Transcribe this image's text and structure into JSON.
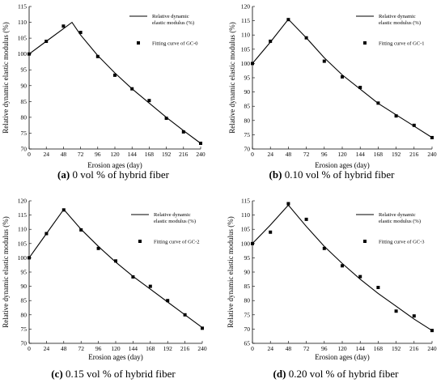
{
  "chart_data": [
    {
      "type": "line",
      "panel_label": "(a)",
      "caption": "0 vol % of hybrid fiber",
      "xlabel": "Erosion ages (day)",
      "ylabel": "Relative dynamic elastic modulus (%)",
      "xlim": [
        0,
        240
      ],
      "ylim": [
        70,
        115
      ],
      "xticks": [
        0,
        24,
        48,
        72,
        96,
        120,
        144,
        168,
        192,
        216,
        240
      ],
      "yticks": [
        70,
        75,
        80,
        85,
        90,
        95,
        100,
        105,
        110,
        115
      ],
      "legend": {
        "line": [
          "Relative dynamic",
          "elastic modulus (%)"
        ],
        "marker": "Fitting curve of GC-0"
      },
      "series": [
        {
          "kind": "line",
          "x": [
            0,
            24,
            48,
            60,
            72,
            96,
            120,
            144,
            168,
            192,
            216,
            240
          ],
          "y": [
            100,
            104,
            108,
            110,
            106,
            99.5,
            94,
            89,
            84.5,
            80,
            75.8,
            71.8
          ]
        },
        {
          "kind": "marker",
          "x": [
            0,
            24,
            48,
            72,
            96,
            120,
            144,
            168,
            192,
            216,
            240
          ],
          "y": [
            100,
            104,
            108.8,
            106.8,
            99.2,
            93.3,
            89,
            85.3,
            79.7,
            75.4,
            71.8
          ]
        }
      ]
    },
    {
      "type": "line",
      "panel_label": "(b)",
      "caption": "0.10 vol % of hybrid fiber",
      "xlabel": "Erosion ages (day)",
      "ylabel": "Relative dynamic elastic modulus (%)",
      "xlim": [
        0,
        240
      ],
      "ylim": [
        70,
        120
      ],
      "xticks": [
        0,
        24,
        48,
        72,
        96,
        120,
        144,
        168,
        192,
        216,
        240
      ],
      "yticks": [
        70,
        75,
        80,
        85,
        90,
        95,
        100,
        105,
        110,
        115,
        120
      ],
      "legend": {
        "line": [
          "Relative dynamic",
          "elastic modulus (%)"
        ],
        "marker": "Fitting curve of GC-1"
      },
      "series": [
        {
          "kind": "line",
          "x": [
            0,
            24,
            48,
            72,
            96,
            120,
            144,
            168,
            192,
            216,
            240
          ],
          "y": [
            100,
            107.5,
            115.5,
            109,
            102,
            96,
            91,
            86,
            82,
            78,
            74
          ]
        },
        {
          "kind": "marker",
          "x": [
            0,
            24,
            48,
            72,
            96,
            120,
            144,
            168,
            192,
            216,
            240
          ],
          "y": [
            100,
            107.8,
            115.4,
            109,
            100.8,
            95.3,
            91.6,
            86.1,
            81.6,
            78.3,
            74
          ]
        }
      ]
    },
    {
      "type": "line",
      "panel_label": "(c)",
      "caption": "0.15 vol % of hybrid fiber",
      "xlabel": "Erosion ages (day)",
      "ylabel": "Relative dynamic elastic modulus (%)",
      "xlim": [
        0,
        240
      ],
      "ylim": [
        70,
        120
      ],
      "xticks": [
        0,
        24,
        48,
        72,
        96,
        120,
        144,
        168,
        192,
        216,
        240
      ],
      "yticks": [
        70,
        75,
        80,
        85,
        90,
        95,
        100,
        105,
        110,
        115,
        120
      ],
      "legend": {
        "line": [
          "Relative dynamic",
          "elastic modulus (%)"
        ],
        "marker": "Fitting curve of GC-2"
      },
      "series": [
        {
          "kind": "line",
          "x": [
            0,
            24,
            48,
            72,
            96,
            120,
            144,
            168,
            192,
            216,
            240
          ],
          "y": [
            100,
            108.5,
            117,
            110,
            104,
            98.5,
            93.5,
            89,
            84.5,
            80,
            75.5
          ]
        },
        {
          "kind": "marker",
          "x": [
            0,
            24,
            48,
            72,
            96,
            120,
            144,
            168,
            192,
            216,
            240
          ],
          "y": [
            100,
            108.5,
            116.8,
            109.8,
            103.3,
            98.9,
            93.3,
            90,
            85,
            80,
            75.3
          ]
        }
      ]
    },
    {
      "type": "line",
      "panel_label": "(d)",
      "caption": "0.20 vol % of hybrid fiber",
      "xlabel": "Erosion ages (day)",
      "ylabel": "Relative dynamic elastic modulus (%)",
      "xlim": [
        0,
        240
      ],
      "ylim": [
        65,
        115
      ],
      "xticks": [
        0,
        24,
        48,
        72,
        96,
        120,
        144,
        168,
        192,
        216,
        240
      ],
      "yticks": [
        65,
        70,
        75,
        80,
        85,
        90,
        95,
        100,
        105,
        110,
        115
      ],
      "legend": {
        "line": [
          "Relative dynamic",
          "elastic modulus (%)"
        ],
        "marker": "Fitting curve of GC-3"
      },
      "series": [
        {
          "kind": "line",
          "x": [
            0,
            24,
            48,
            72,
            96,
            120,
            144,
            168,
            192,
            216,
            240
          ],
          "y": [
            100,
            106.5,
            113.5,
            106,
            99,
            93,
            87.5,
            82.5,
            78,
            73.5,
            69.5
          ]
        },
        {
          "kind": "marker",
          "x": [
            0,
            24,
            48,
            72,
            96,
            120,
            144,
            168,
            192,
            216,
            240
          ],
          "y": [
            100,
            104,
            114,
            108.5,
            98.3,
            92.2,
            88.4,
            84.6,
            76.3,
            74.6,
            69.5
          ]
        }
      ]
    }
  ]
}
